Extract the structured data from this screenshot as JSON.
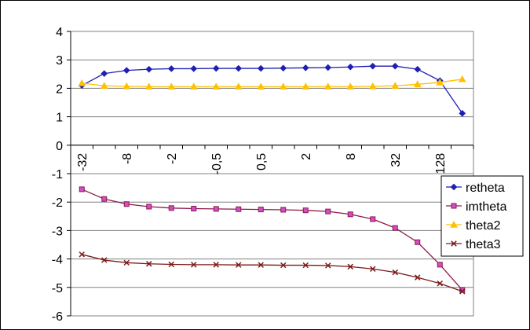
{
  "chart_data": {
    "type": "line",
    "categories": [
      "-32",
      "",
      "-8",
      "",
      "-2",
      "",
      "-0,5",
      "",
      "0,5",
      "",
      "2",
      "",
      "8",
      "",
      "32",
      "",
      "128",
      ""
    ],
    "ylim": [
      -6,
      4
    ],
    "yticks": [
      "4",
      "3",
      "2",
      "1",
      "0",
      "-1",
      "-2",
      "-3",
      "-4",
      "-5",
      "-6"
    ],
    "grid": "horizontal",
    "legend_position": "right",
    "series": [
      {
        "name": "retheta",
        "color": "#1f1fb4",
        "marker": "diamond",
        "values": [
          2.1,
          2.52,
          2.63,
          2.67,
          2.69,
          2.69,
          2.7,
          2.7,
          2.7,
          2.71,
          2.72,
          2.73,
          2.75,
          2.78,
          2.78,
          2.67,
          2.27,
          1.12
        ]
      },
      {
        "name": "imtheta",
        "color": "#8b1a4a",
        "marker": "square",
        "values": [
          -1.55,
          -1.89,
          -2.07,
          -2.16,
          -2.21,
          -2.23,
          -2.24,
          -2.25,
          -2.26,
          -2.27,
          -2.29,
          -2.33,
          -2.43,
          -2.6,
          -2.91,
          -3.41,
          -4.2,
          -5.09
        ]
      },
      {
        "name": "theta2",
        "color": "#ffc000",
        "marker": "triangle",
        "values": [
          2.18,
          2.09,
          2.07,
          2.06,
          2.06,
          2.06,
          2.06,
          2.06,
          2.06,
          2.06,
          2.06,
          2.06,
          2.06,
          2.07,
          2.09,
          2.14,
          2.21,
          2.32
        ]
      },
      {
        "name": "theta3",
        "color": "#7a1a1a",
        "marker": "x",
        "values": [
          -3.84,
          -4.04,
          -4.13,
          -4.17,
          -4.19,
          -4.2,
          -4.2,
          -4.21,
          -4.21,
          -4.22,
          -4.22,
          -4.23,
          -4.27,
          -4.35,
          -4.47,
          -4.65,
          -4.86,
          -5.14
        ]
      }
    ]
  }
}
